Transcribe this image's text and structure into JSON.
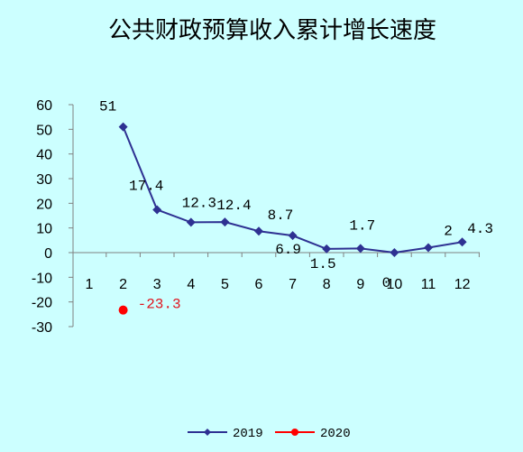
{
  "chart_data": {
    "type": "line",
    "title": "公共财政预算收入累计增长速度",
    "categories": [
      "1",
      "2",
      "3",
      "4",
      "5",
      "6",
      "7",
      "8",
      "9",
      "10",
      "11",
      "12"
    ],
    "ylim": [
      -30,
      60
    ],
    "yticks": [
      60,
      50,
      40,
      30,
      20,
      10,
      0,
      -10,
      -20,
      -30
    ],
    "grid": false,
    "legend_position": "bottom",
    "series": [
      {
        "name": "2019",
        "color": "#2e3192",
        "marker": "diamond",
        "x": [
          "2",
          "3",
          "4",
          "5",
          "6",
          "7",
          "8",
          "9",
          "10",
          "11",
          "12"
        ],
        "values": [
          51,
          17.4,
          12.3,
          12.4,
          8.7,
          6.9,
          1.5,
          1.7,
          0,
          2,
          4.3
        ],
        "labels": [
          "51",
          "17.4",
          "12.3",
          "12.4",
          "8.7",
          "6.9",
          "1.5",
          "1.7",
          "0",
          "2",
          "4.3"
        ]
      },
      {
        "name": "2020",
        "color": "#ff0000",
        "marker": "circle",
        "x": [
          "2"
        ],
        "values": [
          -23.3
        ],
        "labels": [
          "-23.3"
        ]
      }
    ]
  }
}
